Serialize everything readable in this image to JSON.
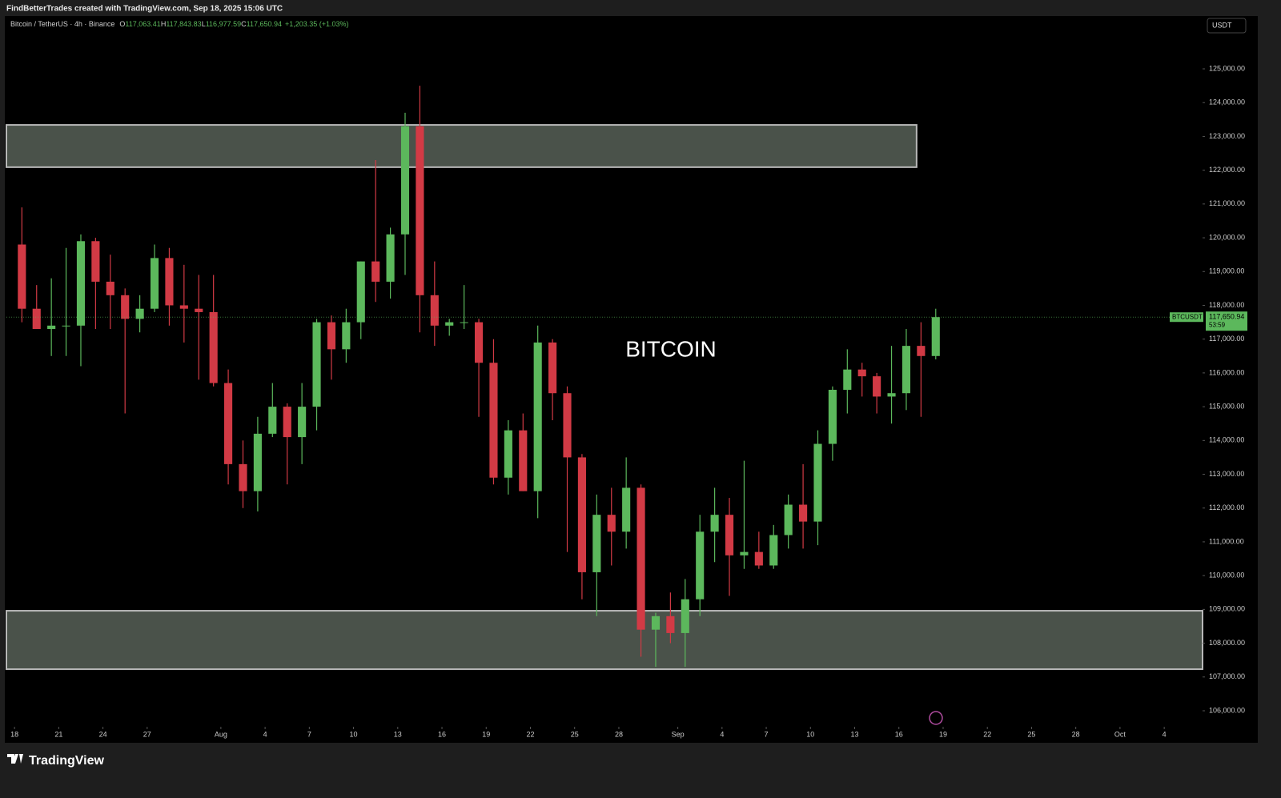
{
  "header": {
    "attribution": "FindBetterTrades created with TradingView.com, Sep 18, 2025 15:06 UTC"
  },
  "footer": {
    "brand": "TradingView"
  },
  "chart_data": {
    "type": "candlestick",
    "symbol": "Bitcoin / TetherUS · 4h · Binance",
    "ohlc": [
      {
        "key": "O",
        "value": "117,063.41"
      },
      {
        "key": "H",
        "value": "117,843.83"
      },
      {
        "key": "L",
        "value": "116,977.59"
      },
      {
        "key": "C",
        "value": "117,650.94"
      }
    ],
    "change": "+1,203.35 (+1.03%)",
    "currency": "USDT",
    "annotation": "BITCOIN",
    "price_tag": {
      "symbol": "BTCUSDT",
      "price": 117650.94,
      "price_label": "117,650.94",
      "countdown": "53:59"
    },
    "up_color": "#5cb85c",
    "down_color": "#d23a45",
    "zones": [
      {
        "top": 123340,
        "bottom": 122090,
        "x_end": 61.2
      },
      {
        "top": 108960,
        "bottom": 107230
      }
    ],
    "categories": [
      "Jul 18",
      "Jul 19",
      "Jul 20",
      "Jul 21",
      "Jul 22",
      "Jul 23",
      "Jul 24",
      "Jul 25",
      "Jul 26",
      "Jul 27",
      "Jul 28",
      "Jul 29",
      "Jul 30",
      "Jul 31",
      "Aug 1",
      "Aug 2",
      "Aug 3",
      "Aug 4",
      "Aug 5",
      "Aug 6",
      "Aug 7",
      "Aug 8",
      "Aug 9",
      "Aug 10",
      "Aug 11",
      "Aug 12",
      "Aug 13",
      "Aug 14",
      "Aug 15",
      "Aug 16",
      "Aug 17",
      "Aug 18",
      "Aug 19",
      "Aug 20",
      "Aug 21",
      "Aug 22",
      "Aug 23",
      "Aug 24",
      "Aug 25",
      "Aug 26",
      "Aug 27",
      "Aug 28",
      "Aug 29",
      "Aug 30",
      "Aug 31",
      "Sep 1",
      "Sep 2",
      "Sep 3",
      "Sep 4",
      "Sep 5",
      "Sep 6",
      "Sep 7",
      "Sep 8",
      "Sep 9",
      "Sep 10",
      "Sep 11",
      "Sep 12",
      "Sep 13",
      "Sep 14",
      "Sep 15",
      "Sep 16",
      "Sep 17",
      "Sep 18"
    ],
    "open": [
      119800,
      117900,
      117300,
      117400,
      117400,
      119900,
      118700,
      118300,
      117600,
      117900,
      119400,
      118000,
      117900,
      117800,
      115700,
      113300,
      112500,
      114200,
      115000,
      114100,
      115000,
      117500,
      116700,
      117500,
      119300,
      118700,
      120100,
      123300,
      118300,
      117400,
      117500,
      117500,
      116300,
      112900,
      114300,
      112500,
      116900,
      115400,
      113500,
      110100,
      111800,
      111300,
      112600,
      108400,
      108800,
      108300,
      109300,
      111300,
      111800,
      110600,
      110700,
      110300,
      111200,
      112100,
      111600,
      113900,
      115500,
      116100,
      115900,
      115300,
      115400,
      116800,
      116500
    ],
    "high": [
      120900,
      118600,
      118800,
      119700,
      120100,
      120000,
      119500,
      118500,
      118300,
      119800,
      119700,
      119200,
      118900,
      118900,
      116100,
      114000,
      114700,
      115700,
      115100,
      115700,
      117600,
      117700,
      117900,
      119300,
      122300,
      120300,
      123700,
      124500,
      119300,
      117600,
      118600,
      117600,
      117000,
      114600,
      114800,
      117400,
      117000,
      115600,
      113600,
      112400,
      112600,
      113500,
      112700,
      108900,
      109500,
      109900,
      111800,
      112600,
      112300,
      113400,
      111300,
      111500,
      112400,
      113300,
      114300,
      115600,
      116700,
      116300,
      116000,
      116800,
      117300,
      117500,
      117900
    ],
    "low": [
      117500,
      117300,
      116500,
      116500,
      116200,
      117300,
      117300,
      114800,
      117200,
      117800,
      117400,
      116900,
      115800,
      115600,
      112700,
      112000,
      111900,
      114100,
      112700,
      113300,
      114300,
      115800,
      116300,
      117000,
      118100,
      118200,
      118900,
      117200,
      116800,
      117100,
      117300,
      114700,
      112700,
      112400,
      112500,
      111700,
      114600,
      110700,
      109300,
      108800,
      110300,
      110800,
      107600,
      107300,
      108000,
      107300,
      108800,
      110400,
      109400,
      110200,
      110200,
      110200,
      110800,
      110800,
      110900,
      113400,
      114800,
      115300,
      114800,
      114500,
      114900,
      114700,
      116400
    ],
    "close": [
      117900,
      117300,
      117400,
      117400,
      119900,
      118700,
      118300,
      117600,
      117900,
      119400,
      118000,
      117900,
      117800,
      115700,
      113300,
      112500,
      114200,
      115000,
      114100,
      115000,
      117500,
      116700,
      117500,
      119300,
      118700,
      120100,
      123300,
      118300,
      117400,
      117500,
      117500,
      116300,
      112900,
      114300,
      112500,
      116900,
      115400,
      113500,
      110100,
      111800,
      111300,
      112600,
      108400,
      108800,
      108300,
      109300,
      111300,
      111800,
      110600,
      110700,
      110300,
      111200,
      112100,
      111600,
      113900,
      115500,
      116100,
      115900,
      115300,
      115400,
      116800,
      116500,
      117650.94
    ],
    "xlim": [
      -0.55,
      80.6
    ],
    "xticks": [
      {
        "value": 0,
        "label": "18"
      },
      {
        "value": 3,
        "label": "21"
      },
      {
        "value": 6,
        "label": "24"
      },
      {
        "value": 9,
        "label": "27"
      },
      {
        "value": 14,
        "label": "Aug"
      },
      {
        "value": 17,
        "label": "4"
      },
      {
        "value": 20,
        "label": "7"
      },
      {
        "value": 23,
        "label": "10"
      },
      {
        "value": 26,
        "label": "13"
      },
      {
        "value": 29,
        "label": "16"
      },
      {
        "value": 32,
        "label": "19"
      },
      {
        "value": 35,
        "label": "22"
      },
      {
        "value": 38,
        "label": "25"
      },
      {
        "value": 41,
        "label": "28"
      },
      {
        "value": 45,
        "label": "Sep"
      },
      {
        "value": 48,
        "label": "4"
      },
      {
        "value": 51,
        "label": "7"
      },
      {
        "value": 54,
        "label": "10"
      },
      {
        "value": 57,
        "label": "13"
      },
      {
        "value": 60,
        "label": "16"
      },
      {
        "value": 63,
        "label": "19"
      },
      {
        "value": 66,
        "label": "22"
      },
      {
        "value": 69,
        "label": "25"
      },
      {
        "value": 72,
        "label": "28"
      },
      {
        "value": 75,
        "label": "Oct"
      },
      {
        "value": 78,
        "label": "4"
      }
    ],
    "ylim": [
      105526,
      126564
    ],
    "yticks": [
      {
        "value": 106000,
        "label": "106,000.00"
      },
      {
        "value": 107000,
        "label": "107,000.00"
      },
      {
        "value": 108000,
        "label": "108,000.00"
      },
      {
        "value": 109000,
        "label": "109,000.00"
      },
      {
        "value": 110000,
        "label": "110,000.00"
      },
      {
        "value": 111000,
        "label": "111,000.00"
      },
      {
        "value": 112000,
        "label": "112,000.00"
      },
      {
        "value": 113000,
        "label": "113,000.00"
      },
      {
        "value": 114000,
        "label": "114,000.00"
      },
      {
        "value": 115000,
        "label": "115,000.00"
      },
      {
        "value": 116000,
        "label": "116,000.00"
      },
      {
        "value": 117000,
        "label": "117,000.00"
      },
      {
        "value": 118000,
        "label": "118,000.00"
      },
      {
        "value": 119000,
        "label": "119,000.00"
      },
      {
        "value": 120000,
        "label": "120,000.00"
      },
      {
        "value": 121000,
        "label": "121,000.00"
      },
      {
        "value": 122000,
        "label": "122,000.00"
      },
      {
        "value": 123000,
        "label": "123,000.00"
      },
      {
        "value": 124000,
        "label": "124,000.00"
      },
      {
        "value": 125000,
        "label": "125,000.00"
      }
    ],
    "grid": false
  }
}
